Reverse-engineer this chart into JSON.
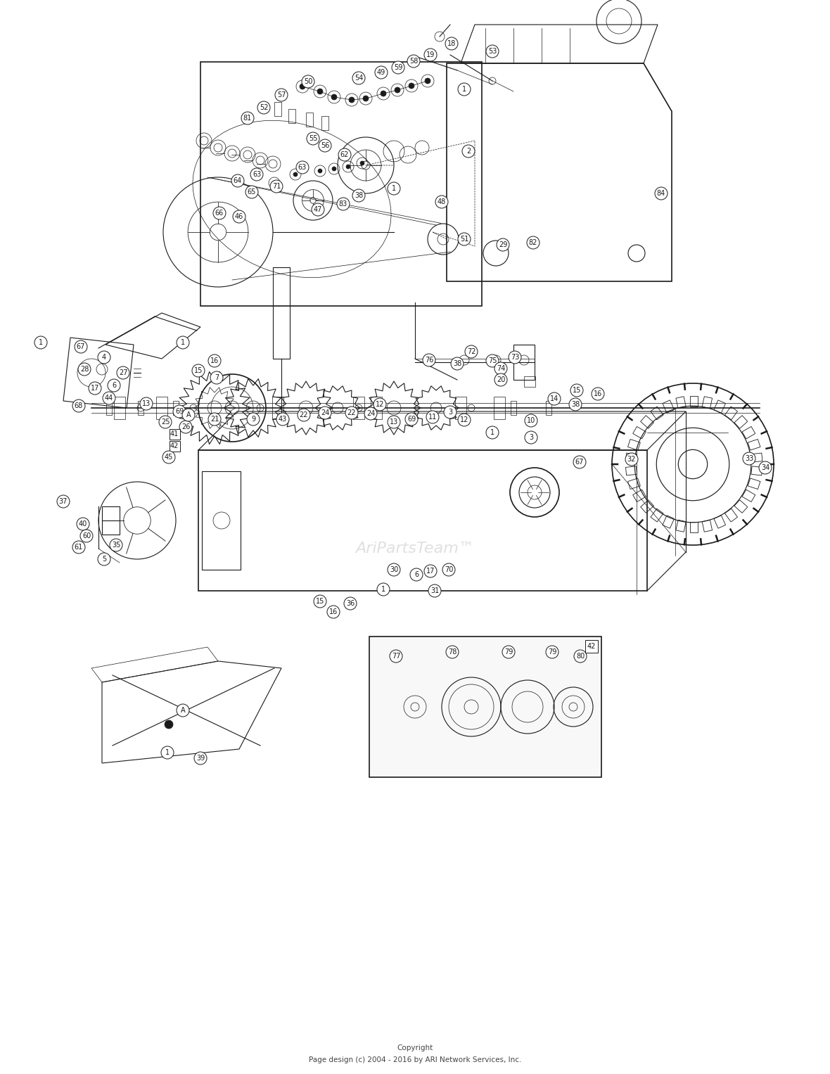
{
  "bg_color": "#ffffff",
  "fig_width": 11.8,
  "fig_height": 15.27,
  "dpi": 100,
  "copyright_line1": "Copyright",
  "copyright_line2": "Page design (c) 2004 - 2016 by ARI Network Services, Inc.",
  "watermark": "AriPartsTeam™",
  "line_color": "#1a1a1a",
  "label_fontsize": 7.0,
  "copyright_fontsize": 7.5,
  "label_circle_r": 9
}
